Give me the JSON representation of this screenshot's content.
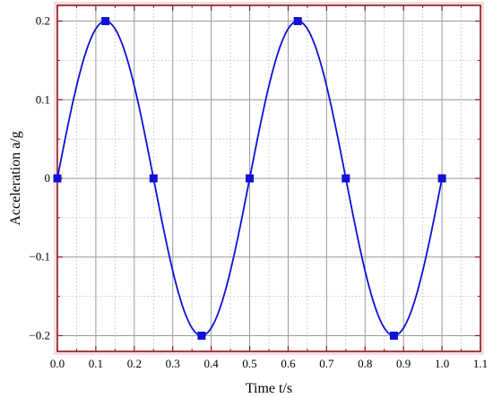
{
  "chart_data": {
    "type": "line",
    "xlabel": "Time t/s",
    "ylabel": "Acceleration a/g",
    "xlim": [
      0.0,
      1.1
    ],
    "ylim": [
      -0.22,
      0.22
    ],
    "x_ticks": [
      0.0,
      0.1,
      0.2,
      0.3,
      0.4,
      0.5,
      0.6,
      0.7,
      0.8,
      0.9,
      1.0,
      1.1
    ],
    "x_tick_labels": [
      "0.0",
      "0.1",
      "0.2",
      "0.3",
      "0.4",
      "0.5",
      "0.6",
      "0.7",
      "0.8",
      "0.9",
      "1.0",
      "1.1"
    ],
    "y_ticks": [
      -0.2,
      -0.1,
      0,
      0.1,
      0.2
    ],
    "y_tick_labels": [
      "−0.2",
      "−0.1",
      "0",
      "0.1",
      "0.2"
    ],
    "grid": true,
    "series": [
      {
        "x": [
          0.0,
          0.125,
          0.25,
          0.375,
          0.5,
          0.625,
          0.75,
          0.875,
          1.0
        ],
        "y": [
          0,
          0.2,
          0,
          -0.2,
          0,
          0.2,
          0,
          -0.2,
          0
        ],
        "curve": "sine",
        "color": "#1010d8",
        "marker": "square"
      }
    ],
    "colors": {
      "line": "#1010d8",
      "marker": "#1010d8",
      "axis_frame": "#8b1a1a",
      "grid_major": "#999999",
      "grid_minor": "#c8c8c8",
      "plot_background": "#ffffff",
      "outer_glow": "#f7dde3"
    }
  }
}
